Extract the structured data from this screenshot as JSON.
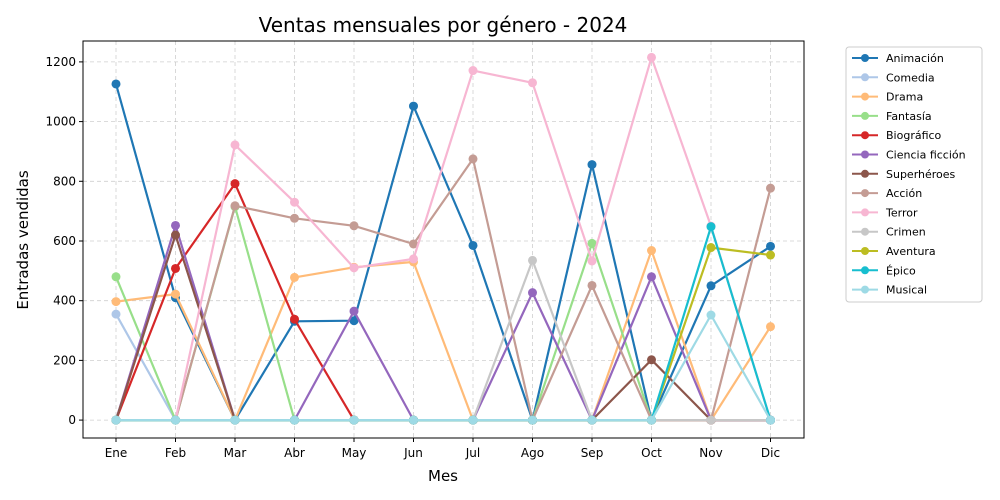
{
  "chart_data": {
    "type": "line",
    "title": "Ventas mensuales por género - 2024",
    "xlabel": "Mes",
    "ylabel": "Entradas vendidas",
    "categories": [
      "Ene",
      "Feb",
      "Mar",
      "Abr",
      "May",
      "Jun",
      "Jul",
      "Ago",
      "Sep",
      "Oct",
      "Nov",
      "Dic"
    ],
    "ylim": [
      -60,
      1270
    ],
    "yticks": [
      0,
      200,
      400,
      600,
      800,
      1000,
      1200
    ],
    "grid": true,
    "legend_position": "outside-right",
    "series": [
      {
        "name": "Animación",
        "color": "#1f77b4",
        "values": [
          1126,
          410,
          0,
          331,
          333,
          1052,
          585,
          0,
          856,
          0,
          450,
          582
        ]
      },
      {
        "name": "Comedia",
        "color": "#aec7e8",
        "values": [
          355,
          0,
          0,
          0,
          0,
          0,
          0,
          0,
          0,
          0,
          0,
          0
        ]
      },
      {
        "name": "Drama",
        "color": "#ffbb78",
        "values": [
          397,
          422,
          0,
          478,
          512,
          530,
          0,
          0,
          0,
          568,
          0,
          313
        ]
      },
      {
        "name": "Fantasía",
        "color": "#98df8a",
        "values": [
          480,
          0,
          715,
          0,
          0,
          0,
          0,
          0,
          592,
          0,
          0,
          0
        ]
      },
      {
        "name": "Biográfico",
        "color": "#d62728",
        "values": [
          0,
          508,
          792,
          338,
          0,
          0,
          0,
          0,
          0,
          0,
          0,
          0
        ]
      },
      {
        "name": "Ciencia ficción",
        "color": "#9467bd",
        "values": [
          0,
          652,
          0,
          0,
          365,
          0,
          0,
          427,
          0,
          480,
          0,
          0
        ]
      },
      {
        "name": "Superhéroes",
        "color": "#8c564b",
        "values": [
          0,
          620,
          0,
          0,
          0,
          0,
          0,
          0,
          0,
          202,
          0,
          0
        ]
      },
      {
        "name": "Acción",
        "color": "#c49c94",
        "values": [
          0,
          0,
          718,
          676,
          651,
          590,
          875,
          0,
          451,
          0,
          0,
          777
        ]
      },
      {
        "name": "Terror",
        "color": "#f7b6d2",
        "values": [
          0,
          0,
          922,
          730,
          510,
          540,
          1171,
          1130,
          533,
          1215,
          650,
          0
        ]
      },
      {
        "name": "Crimen",
        "color": "#c7c7c7",
        "values": [
          0,
          0,
          0,
          0,
          0,
          0,
          0,
          535,
          0,
          0,
          0,
          0
        ]
      },
      {
        "name": "Aventura",
        "color": "#bcbd22",
        "values": [
          0,
          0,
          0,
          0,
          0,
          0,
          0,
          0,
          0,
          0,
          578,
          553
        ]
      },
      {
        "name": "Épico",
        "color": "#17becf",
        "values": [
          0,
          0,
          0,
          0,
          0,
          0,
          0,
          0,
          0,
          0,
          648,
          0
        ]
      },
      {
        "name": "Musical",
        "color": "#9edae5",
        "values": [
          0,
          0,
          0,
          0,
          0,
          0,
          0,
          0,
          0,
          0,
          352,
          0
        ]
      }
    ]
  }
}
